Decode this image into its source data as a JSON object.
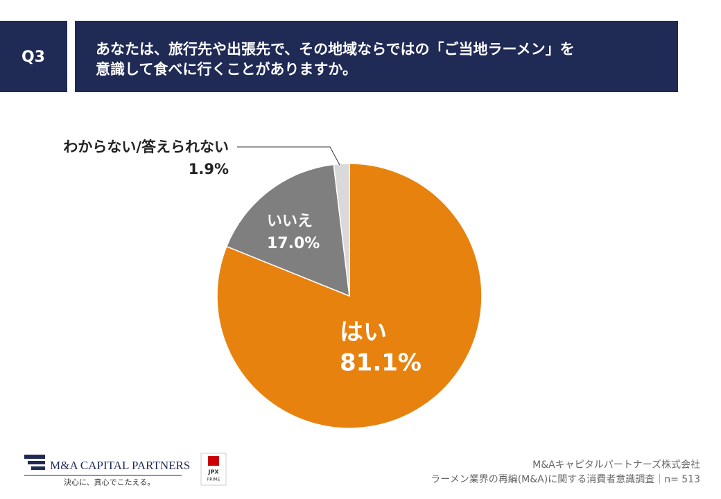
{
  "header": {
    "label": "Q3",
    "question": [
      "あなたは、旅行先や出張先で、その地域ならではの「ご当地ラーメン」を",
      "意識して食べに行くことがありますか。"
    ]
  },
  "chart_data": {
    "type": "pie",
    "categories": [
      "はい",
      "いいえ",
      "わからない/答えられない"
    ],
    "values": [
      81.1,
      17.0,
      1.9
    ],
    "value_labels": [
      "81.1%",
      "17.0%",
      "1.9%"
    ],
    "colors": [
      "#e8820e",
      "#7f7f7f",
      "#d9d9d9"
    ]
  },
  "footer": {
    "logo": "M&A CAPITAL PARTNERS",
    "tagline": "決心に、真心でこたえる。",
    "badge": [
      "JPX",
      "PRIME"
    ],
    "source": [
      "M&Aキャピタルパートナーズ株式会社",
      "ラーメン業界の再編(M&A)に関する消費者意識調査｜n= 513"
    ]
  }
}
